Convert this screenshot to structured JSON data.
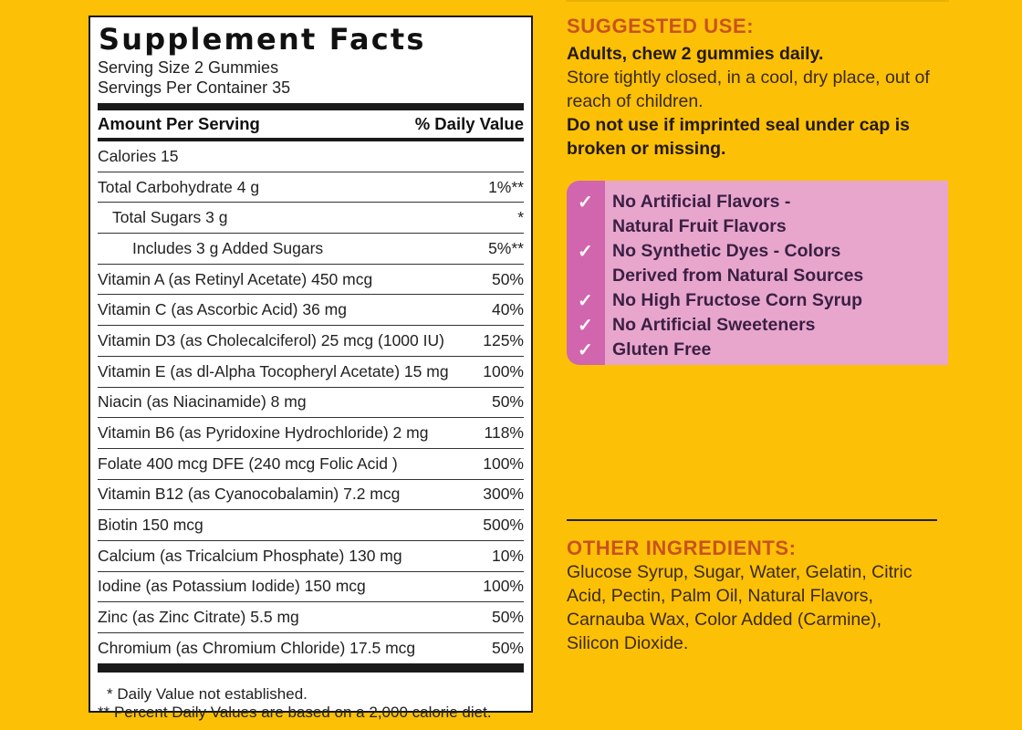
{
  "facts": {
    "title": "Supplement Facts",
    "serving_size": "Serving Size 2 Gummies",
    "servings_per_container": "Servings Per Container 35",
    "header_left": "Amount Per Serving",
    "header_right": "% Daily Value",
    "rows": [
      {
        "name": "Calories  15",
        "dv": "",
        "level": 0
      },
      {
        "name": "Total Carbohydrate  4 g",
        "dv": "1%**",
        "level": 0
      },
      {
        "name": "Total Sugars  3 g",
        "dv": "*",
        "level": 1
      },
      {
        "name": "Includes  3 g Added Sugars",
        "dv": "5%**",
        "level": 2
      },
      {
        "name": "Vitamin A (as Retinyl Acetate)  450 mcg",
        "dv": "50%",
        "level": 0
      },
      {
        "name": "Vitamin C (as Ascorbic Acid)  36 mg",
        "dv": "40%",
        "level": 0
      },
      {
        "name": "Vitamin D3 (as Cholecalciferol) 25 mcg (1000 IU)",
        "dv": "125%",
        "level": 0
      },
      {
        "name": "Vitamin E (as dl-Alpha Tocopheryl Acetate) 15 mg",
        "dv": "100%",
        "level": 0
      },
      {
        "name": "Niacin (as Niacinamide)  8 mg",
        "dv": "50%",
        "level": 0
      },
      {
        "name": "Vitamin B6 (as Pyridoxine Hydrochloride)  2 mg",
        "dv": "118%",
        "level": 0
      },
      {
        "name": "Folate  400 mcg DFE (240 mcg Folic Acid )",
        "dv": "100%",
        "level": 0
      },
      {
        "name": "Vitamin B12 (as Cyanocobalamin)  7.2 mcg",
        "dv": "300%",
        "level": 0
      },
      {
        "name": "Biotin  150 mcg",
        "dv": "500%",
        "level": 0
      },
      {
        "name": "Calcium (as Tricalcium Phosphate)  130 mg",
        "dv": "10%",
        "level": 0
      },
      {
        "name": "Iodine (as Potassium Iodide)  150 mcg",
        "dv": "100%",
        "level": 0
      },
      {
        "name": "Zinc (as Zinc Citrate)  5.5 mg",
        "dv": "50%",
        "level": 0
      },
      {
        "name": "Chromium (as Chromium Chloride)  17.5 mcg",
        "dv": "50%",
        "level": 0
      }
    ],
    "footnote_1": "* Daily Value not established.",
    "footnote_2": "** Percent Daily Values are based on a 2,000 calorie diet."
  },
  "suggested_use": {
    "title": "SUGGESTED USE:",
    "line_1": "Adults, chew 2 gummies daily.",
    "line_2": "Store tightly closed, in a cool, dry place, out of reach of children.",
    "line_3": "Do not use if imprinted seal under cap is broken or missing."
  },
  "claims": {
    "check_symbol": "✓",
    "items": [
      "No Artificial Flavors -",
      "Natural Fruit Flavors",
      "No Synthetic Dyes - Colors",
      "Derived from Natural Sources",
      "No High Fructose Corn Syrup",
      "No Artificial Sweeteners",
      "Gluten Free"
    ]
  },
  "other_ingredients": {
    "title": "OTHER INGREDIENTS:",
    "text": "Glucose Syrup, Sugar, Water, Gelatin, Citric Acid, Pectin, Palm Oil, Natural Flavors, Carnauba Wax, Color Added (Carmine), Silicon Dioxide."
  },
  "colors": {
    "background": "#FCC007",
    "accent_orange": "#C8531E",
    "claims_pink": "#E8A6CC",
    "claims_strip": "#D165AE"
  }
}
